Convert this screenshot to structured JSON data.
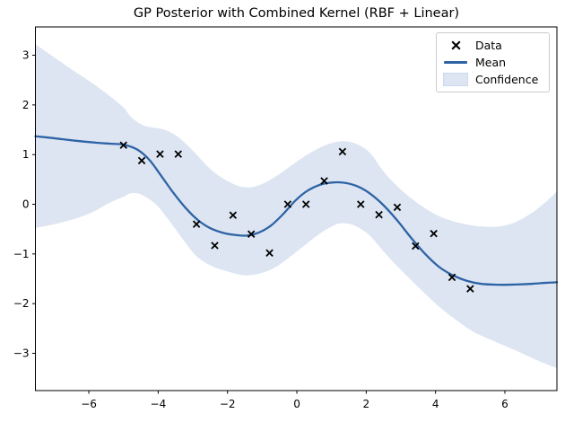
{
  "title": "GP Posterior with Combined Kernel (RBF + Linear)",
  "legend": {
    "entries": [
      {
        "label": "Data",
        "handle": "x-marker"
      },
      {
        "label": "Mean",
        "handle": "line"
      },
      {
        "label": "Confidence",
        "handle": "patch"
      }
    ]
  },
  "colors": {
    "mean_line": "#2e63a5",
    "confidence_fill": "#dde5f2",
    "confidence_edge": "#ccd9ee",
    "marker": "#000000",
    "axis": "#000000",
    "tick_label": "#000000",
    "legend_border": "#cccccc",
    "background": "#ffffff"
  },
  "chart_data": {
    "type": "line",
    "title": "GP Posterior with Combined Kernel (RBF + Linear)",
    "xlabel": "",
    "ylabel": "",
    "grid": false,
    "legend_position": "upper right",
    "xlim": [
      -7.54,
      7.5
    ],
    "ylim": [
      -3.75,
      3.57
    ],
    "x_ticks": [
      {
        "v": -6,
        "label": "−6"
      },
      {
        "v": -4,
        "label": "−4"
      },
      {
        "v": -2,
        "label": "−2"
      },
      {
        "v": 0,
        "label": "0"
      },
      {
        "v": 2,
        "label": "2"
      },
      {
        "v": 4,
        "label": "4"
      },
      {
        "v": 6,
        "label": "6"
      }
    ],
    "y_ticks": [
      {
        "v": 3,
        "label": "3"
      },
      {
        "v": 2,
        "label": "2"
      },
      {
        "v": 1,
        "label": "1"
      },
      {
        "v": 0,
        "label": "0"
      },
      {
        "v": -1,
        "label": "−1"
      },
      {
        "v": -2,
        "label": "−2"
      },
      {
        "v": -3,
        "label": "−3"
      }
    ],
    "series": [
      {
        "name": "Data",
        "type": "scatter",
        "marker": "x",
        "x": [
          -5.0,
          -4.474,
          -3.947,
          -3.421,
          -2.895,
          -2.368,
          -1.842,
          -1.316,
          -0.789,
          -0.263,
          0.263,
          0.789,
          1.316,
          1.842,
          2.368,
          2.895,
          3.421,
          3.947,
          4.474,
          5.0
        ],
        "y": [
          1.19,
          0.88,
          1.01,
          1.01,
          -0.4,
          -0.83,
          -0.22,
          -0.6,
          -0.98,
          0.0,
          0.0,
          0.47,
          1.06,
          0.0,
          -0.21,
          -0.06,
          -0.84,
          -0.59,
          -1.47,
          -1.7
        ]
      },
      {
        "name": "Mean",
        "type": "line",
        "points": [
          [
            -7.54,
            1.37
          ],
          [
            -7.0,
            1.33
          ],
          [
            -6.4,
            1.28
          ],
          [
            -5.8,
            1.24
          ],
          [
            -5.4,
            1.22
          ],
          [
            -5.0,
            1.2
          ],
          [
            -4.6,
            1.1
          ],
          [
            -4.25,
            0.89
          ],
          [
            -3.9,
            0.56
          ],
          [
            -3.55,
            0.22
          ],
          [
            -3.2,
            -0.08
          ],
          [
            -2.85,
            -0.32
          ],
          [
            -2.5,
            -0.48
          ],
          [
            -2.1,
            -0.58
          ],
          [
            -1.75,
            -0.62
          ],
          [
            -1.45,
            -0.63
          ],
          [
            -1.1,
            -0.57
          ],
          [
            -0.75,
            -0.43
          ],
          [
            -0.4,
            -0.2
          ],
          [
            -0.05,
            0.07
          ],
          [
            0.3,
            0.27
          ],
          [
            0.7,
            0.4
          ],
          [
            1.05,
            0.44
          ],
          [
            1.4,
            0.43
          ],
          [
            1.75,
            0.36
          ],
          [
            2.1,
            0.22
          ],
          [
            2.5,
            -0.02
          ],
          [
            2.9,
            -0.33
          ],
          [
            3.3,
            -0.68
          ],
          [
            3.7,
            -1.0
          ],
          [
            4.1,
            -1.26
          ],
          [
            4.5,
            -1.43
          ],
          [
            4.9,
            -1.54
          ],
          [
            5.3,
            -1.6
          ],
          [
            5.8,
            -1.62
          ],
          [
            6.3,
            -1.615
          ],
          [
            6.8,
            -1.6
          ],
          [
            7.2,
            -1.58
          ],
          [
            7.5,
            -1.57
          ]
        ]
      },
      {
        "name": "Confidence",
        "type": "band",
        "top": [
          [
            -7.54,
            3.22
          ],
          [
            -7.0,
            2.96
          ],
          [
            -6.4,
            2.67
          ],
          [
            -5.9,
            2.44
          ],
          [
            -5.4,
            2.18
          ],
          [
            -5.0,
            1.95
          ],
          [
            -4.77,
            1.75
          ],
          [
            -4.4,
            1.58
          ],
          [
            -4.0,
            1.53
          ],
          [
            -3.7,
            1.47
          ],
          [
            -3.4,
            1.34
          ],
          [
            -3.0,
            1.08
          ],
          [
            -2.6,
            0.78
          ],
          [
            -2.3,
            0.6
          ],
          [
            -2.0,
            0.47
          ],
          [
            -1.7,
            0.37
          ],
          [
            -1.45,
            0.34
          ],
          [
            -1.2,
            0.36
          ],
          [
            -0.9,
            0.44
          ],
          [
            -0.5,
            0.61
          ],
          [
            0.0,
            0.86
          ],
          [
            0.5,
            1.08
          ],
          [
            0.9,
            1.21
          ],
          [
            1.3,
            1.27
          ],
          [
            1.7,
            1.22
          ],
          [
            2.1,
            1.04
          ],
          [
            2.5,
            0.66
          ],
          [
            2.9,
            0.36
          ],
          [
            3.3,
            0.12
          ],
          [
            3.7,
            -0.08
          ],
          [
            4.1,
            -0.24
          ],
          [
            4.5,
            -0.34
          ],
          [
            5.0,
            -0.42
          ],
          [
            5.4,
            -0.45
          ],
          [
            5.8,
            -0.45
          ],
          [
            6.3,
            -0.36
          ],
          [
            6.8,
            -0.16
          ],
          [
            7.2,
            0.06
          ],
          [
            7.5,
            0.26
          ]
        ],
        "bottom": [
          [
            -7.54,
            -0.48
          ],
          [
            -7.0,
            -0.4
          ],
          [
            -6.4,
            -0.29
          ],
          [
            -5.9,
            -0.16
          ],
          [
            -5.4,
            0.03
          ],
          [
            -5.0,
            0.15
          ],
          [
            -4.8,
            0.22
          ],
          [
            -4.5,
            0.2
          ],
          [
            -4.1,
            0.02
          ],
          [
            -3.8,
            -0.22
          ],
          [
            -3.5,
            -0.5
          ],
          [
            -3.1,
            -0.88
          ],
          [
            -2.8,
            -1.1
          ],
          [
            -2.4,
            -1.26
          ],
          [
            -2.0,
            -1.35
          ],
          [
            -1.7,
            -1.41
          ],
          [
            -1.4,
            -1.43
          ],
          [
            -1.0,
            -1.38
          ],
          [
            -0.6,
            -1.26
          ],
          [
            -0.2,
            -1.06
          ],
          [
            0.2,
            -0.84
          ],
          [
            0.6,
            -0.62
          ],
          [
            1.0,
            -0.45
          ],
          [
            1.3,
            -0.38
          ],
          [
            1.7,
            -0.44
          ],
          [
            2.1,
            -0.63
          ],
          [
            2.5,
            -0.95
          ],
          [
            2.9,
            -1.25
          ],
          [
            3.3,
            -1.53
          ],
          [
            3.7,
            -1.8
          ],
          [
            4.1,
            -2.06
          ],
          [
            4.5,
            -2.28
          ],
          [
            5.0,
            -2.53
          ],
          [
            5.4,
            -2.67
          ],
          [
            5.8,
            -2.79
          ],
          [
            6.3,
            -2.94
          ],
          [
            6.8,
            -3.1
          ],
          [
            7.2,
            -3.22
          ],
          [
            7.5,
            -3.3
          ]
        ]
      }
    ]
  }
}
